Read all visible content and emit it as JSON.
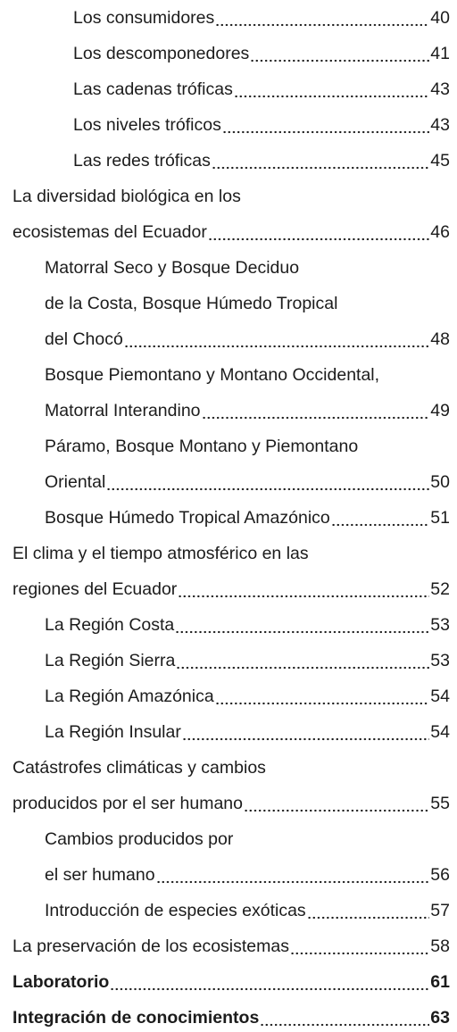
{
  "toc": {
    "entries": [
      {
        "lines": [
          "Los consumidores"
        ],
        "page": "40",
        "level": 2,
        "bold": false
      },
      {
        "lines": [
          "Los descomponedores"
        ],
        "page": "41",
        "level": 2,
        "bold": false
      },
      {
        "lines": [
          "Las cadenas tróficas"
        ],
        "page": "43",
        "level": 2,
        "bold": false
      },
      {
        "lines": [
          "Los niveles tróficos"
        ],
        "page": "43",
        "level": 2,
        "bold": false
      },
      {
        "lines": [
          "Las redes tróficas"
        ],
        "page": "45",
        "level": 2,
        "bold": false
      },
      {
        "lines": [
          "La diversidad biológica en los",
          "ecosistemas del Ecuador"
        ],
        "page": "46",
        "level": 0,
        "bold": false
      },
      {
        "lines": [
          "Matorral Seco y Bosque Deciduo",
          "de la Costa, Bosque Húmedo Tropical",
          "del Chocó"
        ],
        "page": "48",
        "level": 1,
        "bold": false
      },
      {
        "lines": [
          "Bosque Piemontano y Montano Occidental,",
          "Matorral Interandino"
        ],
        "page": "49",
        "level": 1,
        "bold": false
      },
      {
        "lines": [
          "Páramo, Bosque Montano y Piemontano",
          "Oriental"
        ],
        "page": "50",
        "level": 1,
        "bold": false
      },
      {
        "lines": [
          "Bosque Húmedo Tropical Amazónico"
        ],
        "page": "51",
        "level": 1,
        "bold": false
      },
      {
        "lines": [
          "El clima y el tiempo atmosférico en las",
          "regiones del Ecuador"
        ],
        "page": "52",
        "level": 0,
        "bold": false
      },
      {
        "lines": [
          "La Región Costa"
        ],
        "page": "53",
        "level": 1,
        "bold": false
      },
      {
        "lines": [
          "La Región Sierra"
        ],
        "page": "53",
        "level": 1,
        "bold": false
      },
      {
        "lines": [
          "La Región Amazónica"
        ],
        "page": "54",
        "level": 1,
        "bold": false
      },
      {
        "lines": [
          "La Región Insular"
        ],
        "page": "54",
        "level": 1,
        "bold": false
      },
      {
        "lines": [
          "Catástrofes climáticas y cambios",
          "producidos por el ser humano"
        ],
        "page": "55",
        "level": 0,
        "bold": false
      },
      {
        "lines": [
          "Cambios producidos por",
          "el ser humano"
        ],
        "page": "56",
        "level": 1,
        "bold": false
      },
      {
        "lines": [
          "Introducción de especies exóticas"
        ],
        "page": "57",
        "level": 1,
        "bold": false
      },
      {
        "lines": [
          "La preservación de los ecosistemas"
        ],
        "page": "58",
        "level": 0,
        "bold": false
      },
      {
        "lines": [
          "Laboratorio"
        ],
        "page": "61",
        "level": 0,
        "bold": true
      },
      {
        "lines": [
          "Integración de conocimientos"
        ],
        "page": "63",
        "level": 0,
        "bold": true
      }
    ]
  }
}
